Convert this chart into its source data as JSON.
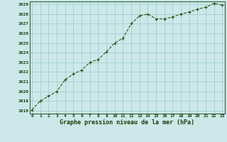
{
  "x": [
    0,
    1,
    2,
    3,
    4,
    5,
    6,
    7,
    8,
    9,
    10,
    11,
    12,
    13,
    14,
    15,
    16,
    17,
    18,
    19,
    20,
    21,
    22,
    23
  ],
  "y": [
    1018.1,
    1019.0,
    1019.5,
    1020.0,
    1021.2,
    1021.8,
    1022.2,
    1023.0,
    1023.3,
    1024.1,
    1025.0,
    1025.5,
    1027.0,
    1027.8,
    1028.0,
    1027.5,
    1027.5,
    1027.7,
    1028.0,
    1028.2,
    1028.5,
    1028.7,
    1029.1,
    1028.9
  ],
  "xlabel": "Graphe pression niveau de la mer (hPa)",
  "ylim_min": 1018,
  "ylim_max": 1029,
  "xlim_min": 0,
  "xlim_max": 23,
  "line_color": "#2d5a1b",
  "marker_color": "#2d5a1b",
  "bg_color": "#cce8e8",
  "grid_color": "#99cccc",
  "label_color": "#1a3d0a",
  "border_color": "#336633"
}
